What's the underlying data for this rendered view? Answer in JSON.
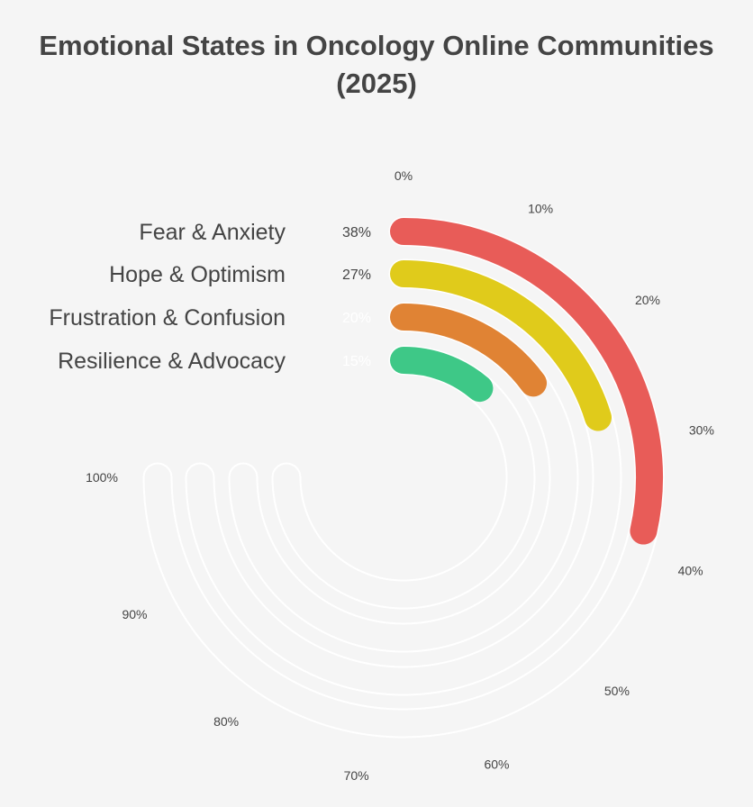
{
  "chart_data": {
    "type": "radial-bar",
    "title": "Emotional States in Oncology Online Communities",
    "subtitle": "(2025)",
    "categories": [
      "Fear & Anxiety",
      "Hope & Optimism",
      "Frustration & Confusion",
      "Resilience & Advocacy"
    ],
    "values": [
      38,
      27,
      20,
      15
    ],
    "value_labels": [
      "38%",
      "27%",
      "20%",
      "15%"
    ],
    "colors": [
      "#e85c58",
      "#e0cb1b",
      "#e08334",
      "#3ec887"
    ],
    "value_label_colors": [
      "#444444",
      "#444444",
      "#ffffff",
      "#ffffff"
    ],
    "scale_max": 100,
    "ticks": [
      0,
      10,
      20,
      30,
      40,
      50,
      60,
      70,
      80,
      90,
      100
    ],
    "tick_labels": [
      "0%",
      "10%",
      "20%",
      "30%",
      "40%",
      "50%",
      "60%",
      "70%",
      "80%",
      "90%",
      "100%"
    ],
    "track_color": "#ffffff",
    "background": "#f5f5f5"
  }
}
